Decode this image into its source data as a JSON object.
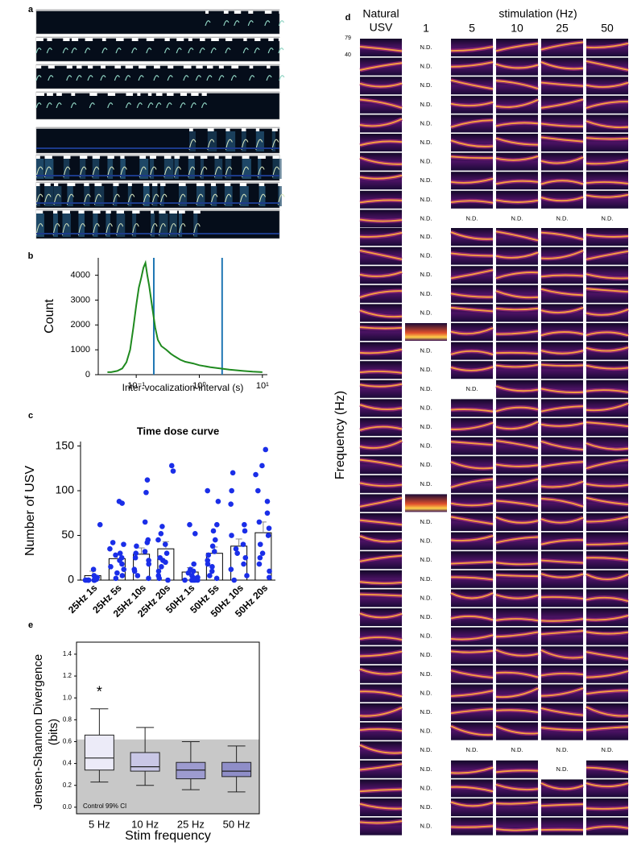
{
  "panel_labels": [
    "a",
    "b",
    "c",
    "d",
    "e"
  ],
  "chart_data": [
    {
      "type": "line",
      "xlabel": "Inter-vocalization-interval (s)",
      "ylabel": "Count",
      "x": [
        0.035,
        0.04,
        0.05,
        0.06,
        0.07,
        0.08,
        0.09,
        0.1,
        0.11,
        0.12,
        0.13,
        0.14,
        0.15,
        0.16,
        0.18,
        0.2,
        0.22,
        0.25,
        0.3,
        0.35,
        0.4,
        0.5,
        0.6,
        0.8,
        1,
        1.5,
        2,
        3,
        5,
        7,
        10
      ],
      "values": [
        100,
        100,
        150,
        250,
        500,
        1000,
        1900,
        2800,
        3500,
        3900,
        4300,
        4500,
        4000,
        3600,
        2700,
        1900,
        1400,
        1150,
        1000,
        850,
        750,
        600,
        520,
        450,
        380,
        300,
        260,
        200,
        150,
        120,
        100
      ],
      "color": "#1f8a1f",
      "log_x": true,
      "xlim": [
        0.025,
        12
      ],
      "ylim": [
        0,
        4700
      ],
      "xticks": [
        {
          "value": 0.1,
          "label": "10⁻¹"
        },
        {
          "value": 1,
          "label": "10⁰"
        },
        {
          "value": 10,
          "label": "10¹"
        }
      ],
      "yticks": [
        0,
        1000,
        2000,
        3000,
        4000
      ],
      "vlines": [
        0.19,
        2.3
      ],
      "vline_color": "#1f77b4"
    },
    {
      "type": "bar",
      "title": "Time dose curve",
      "ylabel": "Number of USV",
      "categories": [
        "25Hz 1s",
        "25Hz 5s",
        "25Hz 10s",
        "25Hz 20s",
        "50Hz 1s",
        "50Hz 5s",
        "50Hz 10s",
        "50Hz 20s"
      ],
      "values": [
        5,
        24,
        29,
        35,
        9,
        30,
        38,
        53
      ],
      "errors": [
        5,
        4,
        7,
        8,
        5,
        7,
        8,
        12
      ],
      "points": [
        [
          62,
          12,
          5,
          3,
          2,
          1,
          0,
          0,
          0,
          0,
          0,
          0,
          0,
          0,
          0
        ],
        [
          88,
          86,
          42,
          40,
          35,
          30,
          28,
          25,
          22,
          18,
          15,
          12,
          8,
          5,
          2
        ],
        [
          112,
          98,
          65,
          45,
          42,
          38,
          32,
          30,
          25,
          22,
          18,
          12,
          10,
          5,
          2
        ],
        [
          128,
          122,
          60,
          52,
          45,
          40,
          30,
          25,
          22,
          20,
          15,
          10,
          5,
          2,
          0
        ],
        [
          62,
          52,
          18,
          12,
          10,
          8,
          5,
          3,
          2,
          0,
          0,
          0,
          0,
          0
        ],
        [
          100,
          88,
          62,
          55,
          45,
          38,
          32,
          28,
          22,
          18,
          15,
          10,
          5,
          2
        ],
        [
          120,
          100,
          85,
          62,
          55,
          50,
          40,
          35,
          30,
          25,
          18,
          12,
          5,
          0
        ],
        [
          146,
          128,
          118,
          100,
          88,
          75,
          65,
          58,
          50,
          40,
          30,
          25,
          18,
          10,
          3
        ]
      ],
      "color": "#1a2ee8",
      "ylim": [
        0,
        155
      ],
      "yticks": [
        0,
        50,
        100,
        150
      ]
    },
    {
      "type": "box",
      "ylabel": [
        "Jensen-Shannon Divergence",
        "(bits)"
      ],
      "xlabel": "Stim frequency",
      "categories": [
        "5 Hz",
        "10 Hz",
        "25 Hz",
        "50 Hz"
      ],
      "boxes": [
        {
          "whislo": 0.23,
          "q1": 0.34,
          "med": 0.45,
          "q3": 0.66,
          "whishi": 0.9
        },
        {
          "whislo": 0.2,
          "q1": 0.33,
          "med": 0.37,
          "q3": 0.5,
          "whishi": 0.73
        },
        {
          "whislo": 0.16,
          "q1": 0.26,
          "med": 0.34,
          "q3": 0.41,
          "whishi": 0.6
        },
        {
          "whislo": 0.14,
          "q1": 0.28,
          "med": 0.33,
          "q3": 0.41,
          "whishi": 0.56
        }
      ],
      "colors": [
        "#ecebf8",
        "#c9c7e6",
        "#9d9bcf",
        "#8f8ec8"
      ],
      "ylim": [
        -0.06,
        1.51
      ],
      "yticks": [
        {
          "value": 0,
          "label": "0.0"
        },
        0.2,
        0.4,
        0.6,
        0.8,
        {
          "value": 1,
          "label": "1.0"
        },
        1.2,
        1.4
      ],
      "band": {
        "upper": 0.62,
        "label": "Control 99% CI",
        "color": "#c8c8c8"
      },
      "annotation": "*"
    }
  ],
  "grid_d": {
    "natural_header": [
      "Natural",
      "USV"
    ],
    "stim_header": "stimulation (Hz)",
    "columns": [
      "1",
      "5",
      "10",
      "25",
      "50"
    ],
    "freq_ticks": [
      "79",
      "40"
    ],
    "ylabel": "Frequency (Hz)",
    "block1": [
      [
        null,
        "N.D.",
        null,
        null,
        null,
        null
      ],
      [
        null,
        "N.D.",
        null,
        null,
        null,
        null
      ],
      [
        null,
        "N.D.",
        null,
        null,
        null,
        null
      ],
      [
        null,
        "N.D.",
        null,
        null,
        null,
        null
      ],
      [
        null,
        "N.D.",
        null,
        null,
        null,
        null
      ],
      [
        null,
        "N.D.",
        null,
        null,
        null,
        null
      ],
      [
        null,
        "N.D.",
        null,
        null,
        null,
        null
      ],
      [
        null,
        "N.D.",
        null,
        null,
        null,
        null
      ],
      [
        null,
        "N.D.",
        null,
        null,
        null,
        null
      ],
      [
        null,
        "N.D.",
        "N.D.",
        "N.D.",
        "N.D.",
        "N.D."
      ]
    ],
    "block2": [
      [
        null,
        "N.D.",
        null,
        null,
        null,
        null
      ],
      [
        null,
        "N.D.",
        null,
        null,
        null,
        null
      ],
      [
        null,
        "N.D.",
        null,
        null,
        null,
        null
      ],
      [
        null,
        "N.D.",
        null,
        null,
        null,
        null
      ],
      [
        null,
        "N.D.",
        null,
        null,
        null,
        null
      ],
      [
        null,
        null,
        null,
        null,
        null,
        null
      ],
      [
        null,
        "N.D.",
        null,
        null,
        null,
        null
      ],
      [
        null,
        "N.D.",
        null,
        null,
        null,
        null
      ],
      [
        null,
        "N.D.",
        "N.D.",
        null,
        null,
        null
      ],
      [
        null,
        "N.D.",
        null,
        null,
        null,
        null
      ],
      [
        null,
        "N.D.",
        null,
        null,
        null,
        null
      ],
      [
        null,
        "N.D.",
        null,
        null,
        null,
        null
      ],
      [
        null,
        "N.D.",
        null,
        null,
        null,
        null
      ],
      [
        null,
        "N.D.",
        null,
        null,
        null,
        null
      ],
      [
        null,
        null,
        null,
        null,
        null,
        null
      ],
      [
        null,
        "N.D.",
        null,
        null,
        null,
        null
      ],
      [
        null,
        "N.D.",
        null,
        null,
        null,
        null
      ],
      [
        null,
        "N.D.",
        null,
        null,
        null,
        null
      ],
      [
        null,
        "N.D.",
        null,
        null,
        null,
        null
      ],
      [
        null,
        "N.D.",
        null,
        null,
        null,
        null
      ],
      [
        null,
        "N.D.",
        null,
        null,
        null,
        null
      ],
      [
        null,
        "N.D.",
        null,
        null,
        null,
        null
      ],
      [
        null,
        "N.D.",
        null,
        null,
        null,
        null
      ],
      [
        null,
        "N.D.",
        null,
        null,
        null,
        null
      ],
      [
        null,
        "N.D.",
        null,
        null,
        null,
        null
      ],
      [
        null,
        "N.D.",
        null,
        null,
        null,
        null
      ],
      [
        null,
        "N.D.",
        null,
        null,
        null,
        null
      ],
      [
        null,
        "N.D.",
        "N.D.",
        "N.D.",
        "N.D.",
        "N.D."
      ],
      [
        null,
        "N.D.",
        null,
        null,
        "N.D.",
        null
      ],
      [
        null,
        "N.D.",
        null,
        null,
        null,
        null
      ],
      [
        null,
        "N.D.",
        null,
        null,
        null,
        null
      ],
      [
        null,
        "N.D.",
        null,
        null,
        null,
        null
      ]
    ]
  }
}
